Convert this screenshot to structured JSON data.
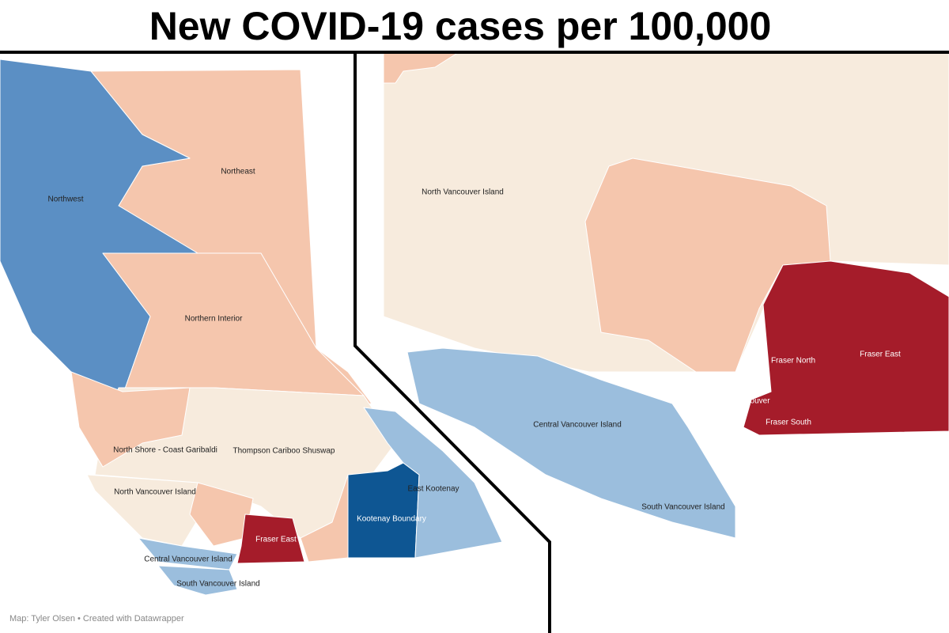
{
  "header": {
    "title": "New COVID-19 cases per 100,000"
  },
  "overview_map": {
    "labels": [
      "Northwest",
      "Northeast",
      "Northern Interior",
      "North Shore - Coast Garibaldi",
      "Thompson Cariboo Shuswap",
      "North Vancouver Island",
      "East Kootenay",
      "Kootenay Boundary",
      "Fraser East",
      "Central Vancouver Island",
      "South Vancouver Island"
    ]
  },
  "detail_map": {
    "labels": [
      "North Vancouver Island",
      "Central Vancouver Island",
      "South Vancouver Island",
      "Fraser North",
      "Fraser East",
      "Vancouver",
      "Fraser South"
    ]
  },
  "credit": "Map: Tyler Olsen • Created with Datawrapper"
}
